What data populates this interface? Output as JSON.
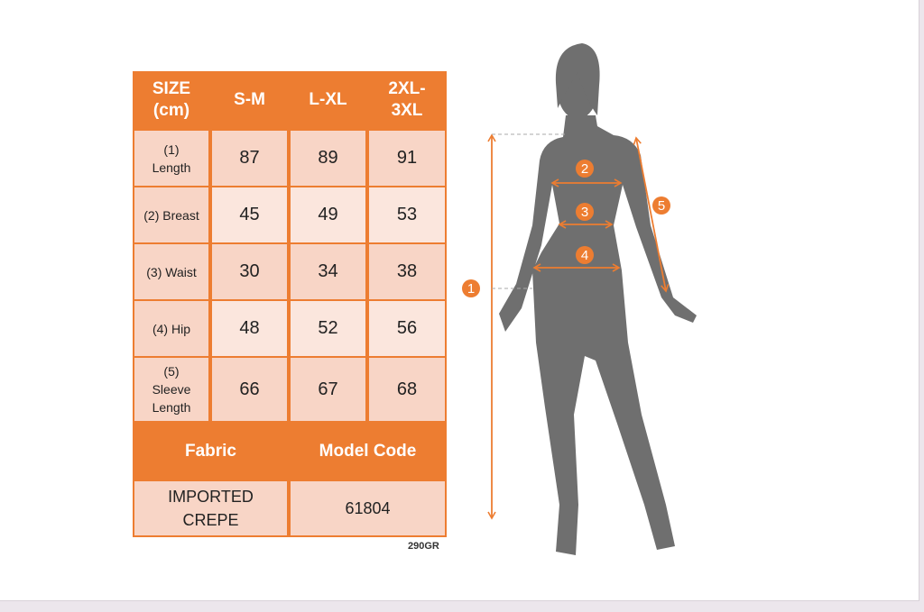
{
  "header": {
    "size_label": "SIZE\n(cm)",
    "sizes": [
      "S-M",
      "L-XL",
      "2XL-\n3XL"
    ]
  },
  "rows": [
    {
      "label": "(1)\nLength",
      "values": [
        "87",
        "89",
        "91"
      ]
    },
    {
      "label": "(2) Breast",
      "values": [
        "45",
        "49",
        "53"
      ]
    },
    {
      "label": "(3) Waist",
      "values": [
        "30",
        "34",
        "38"
      ]
    },
    {
      "label": "(4) Hip",
      "values": [
        "48",
        "52",
        "56"
      ]
    },
    {
      "label": "(5)\nSleeve\nLength",
      "values": [
        "66",
        "67",
        "68"
      ]
    }
  ],
  "footer": {
    "fabric_label": "Fabric",
    "model_code_label": "Model Code",
    "fabric_value": "IMPORTED\nCREPE",
    "model_code_value": "61804"
  },
  "product_code": "290GR",
  "markers": [
    "1",
    "2",
    "3",
    "4",
    "5"
  ],
  "colors": {
    "accent": "#ed7d31",
    "silhouette": "#6f6f6f",
    "cell_dark": "#f8d5c6",
    "cell_light": "#fbe6dd"
  }
}
